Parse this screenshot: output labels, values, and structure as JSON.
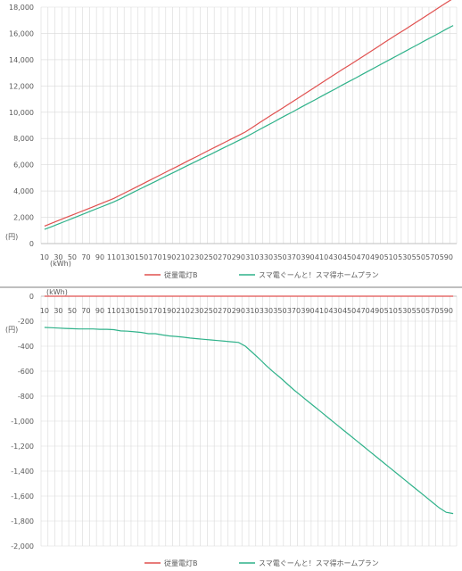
{
  "colors": {
    "series1": "#e0504f",
    "series2": "#2fb28a",
    "grid": "#d9d9d9",
    "axis": "#bfbfbf",
    "text": "#595959"
  },
  "legend": {
    "series1": "従量電灯B",
    "series2": "スマ電ぐーんと！スマ得ホームプラン"
  },
  "chart_data": [
    {
      "type": "line",
      "x_unit_label": "(kWh)",
      "y_unit_label": "(円)",
      "x": [
        10,
        20,
        30,
        40,
        50,
        60,
        70,
        80,
        90,
        100,
        110,
        120,
        130,
        140,
        150,
        160,
        170,
        180,
        190,
        200,
        210,
        220,
        230,
        240,
        250,
        260,
        270,
        280,
        290,
        300,
        310,
        320,
        330,
        340,
        350,
        360,
        370,
        380,
        390,
        400,
        410,
        420,
        430,
        440,
        450,
        460,
        470,
        480,
        490,
        500,
        510,
        520,
        530,
        540,
        550,
        560,
        570,
        580,
        590,
        600
      ],
      "x_tick_labels": [
        "10",
        "30",
        "50",
        "70",
        "90",
        "110",
        "130",
        "150",
        "170",
        "190",
        "210",
        "230",
        "250",
        "270",
        "290",
        "310",
        "330",
        "350",
        "370",
        "390",
        "410",
        "430",
        "450",
        "470",
        "490",
        "510",
        "530",
        "550",
        "570",
        "590"
      ],
      "ylim": [
        0,
        18000
      ],
      "y_tick_labels": [
        "0",
        "2,000",
        "4,000",
        "6,000",
        "8,000",
        "10,000",
        "12,000",
        "14,000",
        "16,000",
        "18,000"
      ],
      "grid": true,
      "legend_position": "bottom",
      "series": [
        {
          "name": "従量電灯B",
          "values": [
            1330,
            1540,
            1750,
            1960,
            2170,
            2380,
            2590,
            2800,
            3010,
            3220,
            3440,
            3700,
            3970,
            4230,
            4500,
            4770,
            5030,
            5300,
            5570,
            5830,
            6100,
            6370,
            6630,
            6900,
            7170,
            7430,
            7700,
            7970,
            8230,
            8500,
            8840,
            9180,
            9520,
            9860,
            10190,
            10530,
            10870,
            11210,
            11550,
            11890,
            12230,
            12570,
            12910,
            13250,
            13580,
            13920,
            14260,
            14600,
            14940,
            15280,
            15620,
            15960,
            16290,
            16630,
            16970,
            17310,
            17650,
            17990,
            18330,
            18660
          ]
        },
        {
          "name": "スマ電ぐーんと！スマ得ホームプラン",
          "values": [
            1080,
            1280,
            1490,
            1700,
            1910,
            2120,
            2330,
            2540,
            2750,
            2960,
            3170,
            3420,
            3690,
            3950,
            4210,
            4470,
            4730,
            4990,
            5250,
            5510,
            5770,
            6030,
            6290,
            6550,
            6800,
            7060,
            7320,
            7580,
            7840,
            8100,
            8380,
            8670,
            8950,
            9230,
            9520,
            9800,
            10080,
            10370,
            10650,
            10930,
            11220,
            11500,
            11780,
            12070,
            12350,
            12630,
            12920,
            13200,
            13480,
            13770,
            14050,
            14330,
            14620,
            14900,
            15180,
            15470,
            15750,
            16030,
            16320,
            16600
          ]
        }
      ]
    },
    {
      "type": "line",
      "x_unit_label": "(kWh)",
      "y_unit_label": "(円)",
      "x": [
        10,
        20,
        30,
        40,
        50,
        60,
        70,
        80,
        90,
        100,
        110,
        120,
        130,
        140,
        150,
        160,
        170,
        180,
        190,
        200,
        210,
        220,
        230,
        240,
        250,
        260,
        270,
        280,
        290,
        300,
        310,
        320,
        330,
        340,
        350,
        360,
        370,
        380,
        390,
        400,
        410,
        420,
        430,
        440,
        450,
        460,
        470,
        480,
        490,
        500,
        510,
        520,
        530,
        540,
        550,
        560,
        570,
        580,
        590,
        600
      ],
      "x_tick_labels": [
        "10",
        "30",
        "50",
        "70",
        "90",
        "110",
        "130",
        "150",
        "170",
        "190",
        "210",
        "230",
        "250",
        "270",
        "290",
        "310",
        "330",
        "350",
        "370",
        "390",
        "410",
        "430",
        "450",
        "470",
        "490",
        "510",
        "530",
        "550",
        "570",
        "590"
      ],
      "ylim": [
        -2000,
        0
      ],
      "y_tick_labels": [
        "0",
        "-200",
        "-400",
        "-600",
        "-800",
        "-1,000",
        "-1,200",
        "-1,400",
        "-1,600",
        "-1,800",
        "-2,000"
      ],
      "grid": true,
      "legend_position": "bottom",
      "series": [
        {
          "name": "従量電灯B",
          "values": [
            0,
            0,
            0,
            0,
            0,
            0,
            0,
            0,
            0,
            0,
            0,
            0,
            0,
            0,
            0,
            0,
            0,
            0,
            0,
            0,
            0,
            0,
            0,
            0,
            0,
            0,
            0,
            0,
            0,
            0,
            0,
            0,
            0,
            0,
            0,
            0,
            0,
            0,
            0,
            0,
            0,
            0,
            0,
            0,
            0,
            0,
            0,
            0,
            0,
            0,
            0,
            0,
            0,
            0,
            0,
            0,
            0,
            0,
            0,
            0
          ]
        },
        {
          "name": "スマ電ぐーんと！スマ得ホームプラン",
          "values": [
            -250,
            -252,
            -255,
            -258,
            -260,
            -262,
            -262,
            -262,
            -265,
            -265,
            -268,
            -278,
            -280,
            -285,
            -290,
            -300,
            -300,
            -310,
            -318,
            -322,
            -328,
            -335,
            -340,
            -345,
            -350,
            -355,
            -360,
            -365,
            -370,
            -400,
            -450,
            -500,
            -555,
            -605,
            -650,
            -700,
            -750,
            -795,
            -840,
            -885,
            -930,
            -975,
            -1020,
            -1065,
            -1110,
            -1155,
            -1200,
            -1245,
            -1290,
            -1335,
            -1380,
            -1425,
            -1470,
            -1515,
            -1560,
            -1605,
            -1650,
            -1695,
            -1730,
            -1740
          ]
        }
      ]
    }
  ]
}
